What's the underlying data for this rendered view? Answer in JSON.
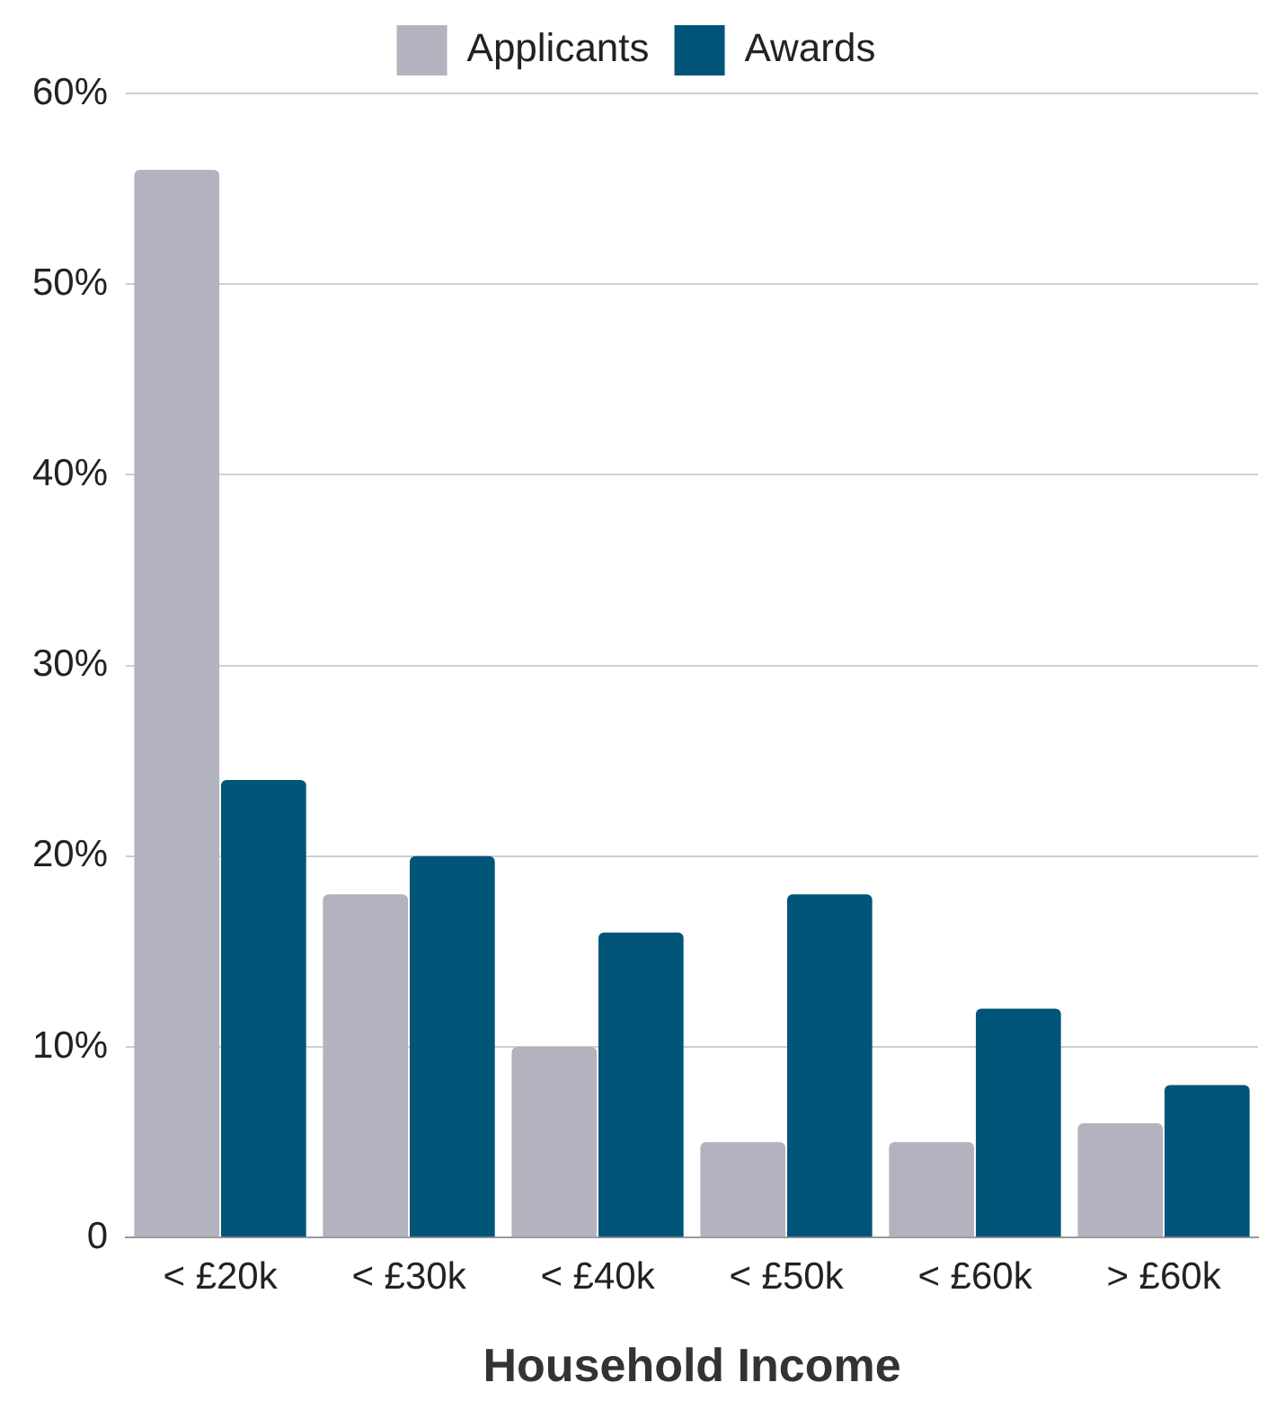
{
  "chart_data": {
    "type": "bar",
    "xlabel": "Household Income",
    "categories": [
      "< £20k",
      "< £30k",
      "< £40k",
      "< £50k",
      "< £60k",
      "> £60k"
    ],
    "series": [
      {
        "name": "Applicants",
        "color": "#b3b3bf",
        "values": [
          56,
          18,
          10,
          5,
          5,
          6
        ]
      },
      {
        "name": "Awards",
        "color": "#005578",
        "values": [
          24,
          20,
          16,
          18,
          12,
          8
        ]
      }
    ],
    "ylim": [
      0,
      60
    ],
    "yticks": [
      {
        "value": 0,
        "label": "0"
      },
      {
        "value": 10,
        "label": "10%"
      },
      {
        "value": 20,
        "label": "20%"
      },
      {
        "value": 30,
        "label": "30%"
      },
      {
        "value": 40,
        "label": "40%"
      },
      {
        "value": 50,
        "label": "50%"
      },
      {
        "value": 60,
        "label": "60%"
      }
    ],
    "grid": "y",
    "legend": "top"
  }
}
